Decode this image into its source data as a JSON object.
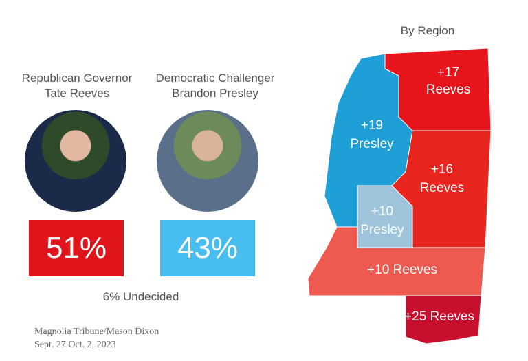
{
  "candidates": [
    {
      "role": "Republican Governor",
      "name": "Tate Reeves",
      "result": "51%"
    },
    {
      "role": "Democratic Challenger",
      "name": "Brandon Presley",
      "result": "43%"
    }
  ],
  "undecided": "6% Undecided",
  "source": {
    "publisher": "Magnolia Tribune/Mason Dixon",
    "dates": "Sept. 27 Oct. 2, 2023"
  },
  "map": {
    "title": "By Region",
    "regions": [
      {
        "margin": "+17",
        "winner": "Reeves"
      },
      {
        "margin": "+19",
        "winner": "Presley"
      },
      {
        "margin": "+16",
        "winner": "Reeves"
      },
      {
        "margin": "+10",
        "winner": "Presley"
      },
      {
        "margin": "+10",
        "winner": "Reeves"
      },
      {
        "margin": "+25",
        "winner": "Reeves"
      }
    ]
  }
}
